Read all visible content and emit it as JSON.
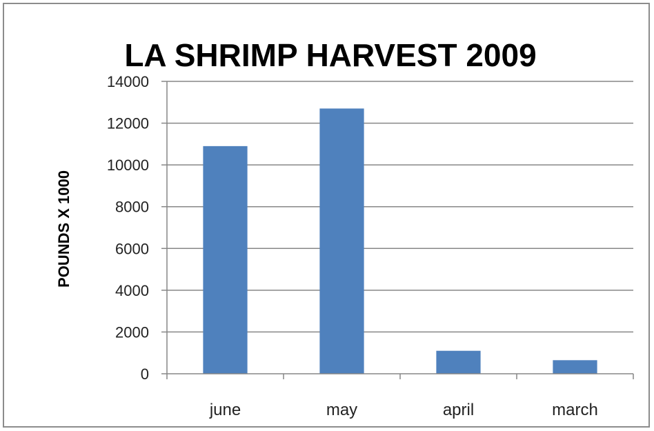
{
  "chart_data": {
    "type": "bar",
    "title": "LA SHRIMP HARVEST 2009",
    "xlabel": "",
    "ylabel": "POUNDS X 1000",
    "categories": [
      "june",
      "may",
      "april",
      "march"
    ],
    "values": [
      10900,
      12700,
      1100,
      650
    ],
    "ylim": [
      0,
      14000
    ],
    "yticks": [
      "0",
      "2000",
      "4000",
      "6000",
      "8000",
      "10000",
      "12000",
      "14000"
    ],
    "grid": true,
    "legend": "none",
    "bar_color": "#4f81bd",
    "grid_color": "#868686"
  }
}
